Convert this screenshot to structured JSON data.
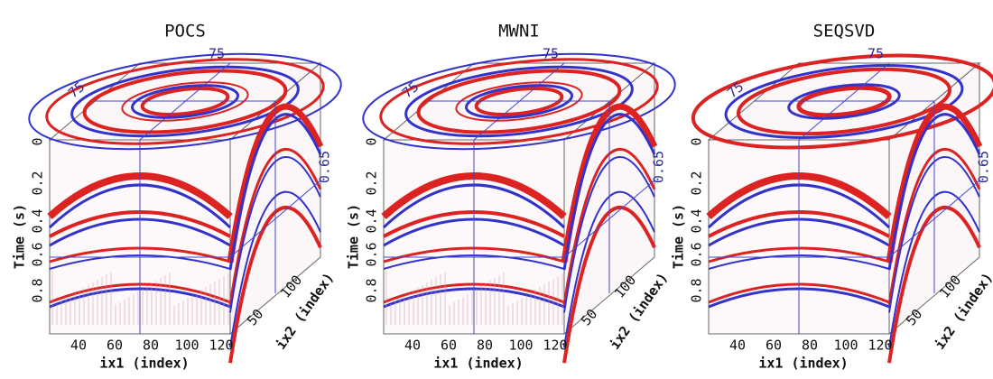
{
  "panels": [
    {
      "title": "POCS"
    },
    {
      "title": "MWNI"
    },
    {
      "title": "SEQSVD"
    }
  ],
  "axes": {
    "time_label": "Time (s)",
    "time_ticks": [
      0,
      0.2,
      0.4,
      0.6,
      0.8
    ],
    "ix1_label": "ix1 (index)",
    "ix1_ticks": [
      40,
      60,
      80,
      100,
      120
    ],
    "ix2_label": "ix2 (index)",
    "ix2_ticks": [
      50,
      100
    ],
    "slice_ix1": 75,
    "slice_ix2": 75,
    "slice_time": 0.65
  }
}
